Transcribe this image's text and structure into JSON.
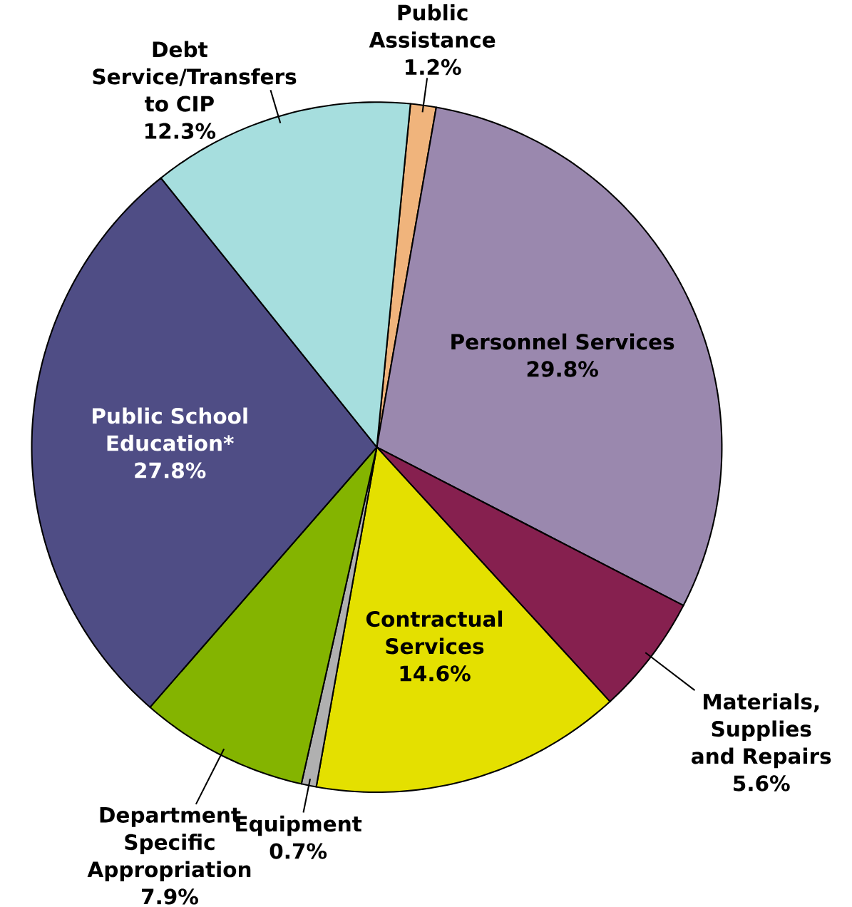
{
  "chart_data": {
    "type": "pie",
    "categories": [
      "Public Assistance",
      "Personnel Services",
      "Materials, Supplies and Repairs",
      "Contractual Services",
      "Equipment",
      "Department Specific Appropriation",
      "Public School Education*",
      "Debt Service/Transfers to CIP"
    ],
    "values": [
      1.2,
      29.8,
      5.6,
      14.6,
      0.7,
      7.9,
      27.8,
      12.3
    ],
    "value_labels": [
      "1.2%",
      "29.8%",
      "5.6%",
      "14.6%",
      "0.7%",
      "7.9%",
      "27.8%",
      "12.3%"
    ],
    "colors": [
      "#f0b47c",
      "#9a88ae",
      "#86204f",
      "#e4e000",
      "#b0b0b0",
      "#84b400",
      "#4f4d85",
      "#a6dede"
    ]
  }
}
